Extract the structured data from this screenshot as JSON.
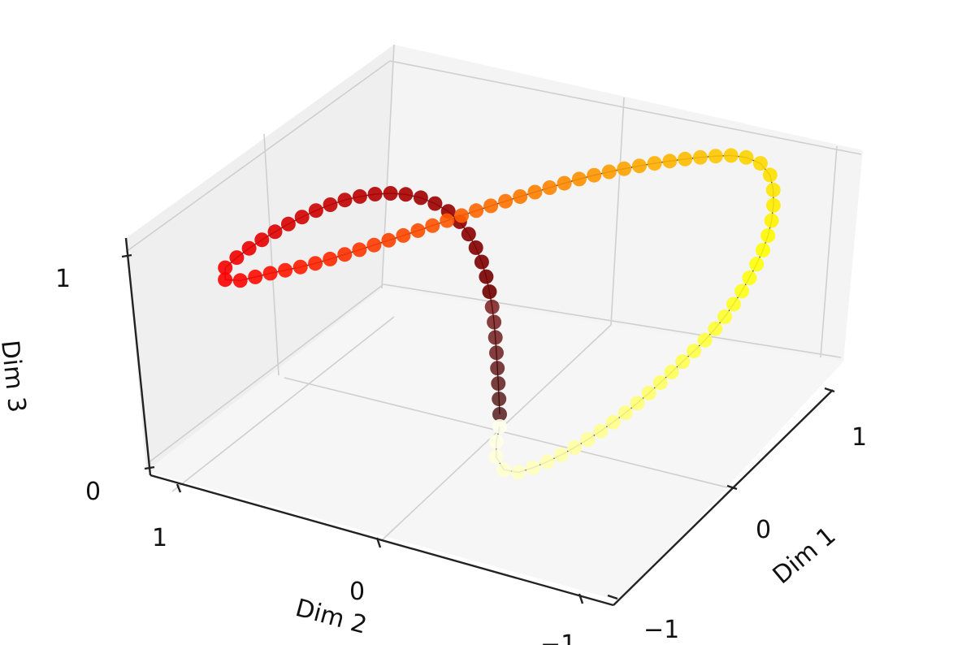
{
  "chart_data": {
    "type": "scatter",
    "projection": "3d",
    "xlabel": "Dim 1",
    "ylabel": "Dim 2",
    "zlabel": "Dim 3",
    "x_ticks": [
      "−1",
      "0",
      "1"
    ],
    "y_ticks": [
      "1",
      "0",
      "−1"
    ],
    "z_ticks": [
      "0",
      "1"
    ],
    "xlim": [
      -1.5,
      1.5
    ],
    "ylim": [
      -1.5,
      1.5
    ],
    "zlim": [
      0,
      1.4
    ],
    "grid": true,
    "legend": "none",
    "colormap": "hot",
    "marker": "circle",
    "connecting_line": true,
    "line_color": "#333333",
    "point_count": 100,
    "curve": {
      "segment_1": "points rise vertically from (0, 0, 0) to (0, 0, 1)",
      "segment_2": "points at height 1 trace an arc across negative Dim 1 and positive Dim 2",
      "segment_3": "points descend back toward (0, 0, 0) through positive Dim 1"
    }
  }
}
